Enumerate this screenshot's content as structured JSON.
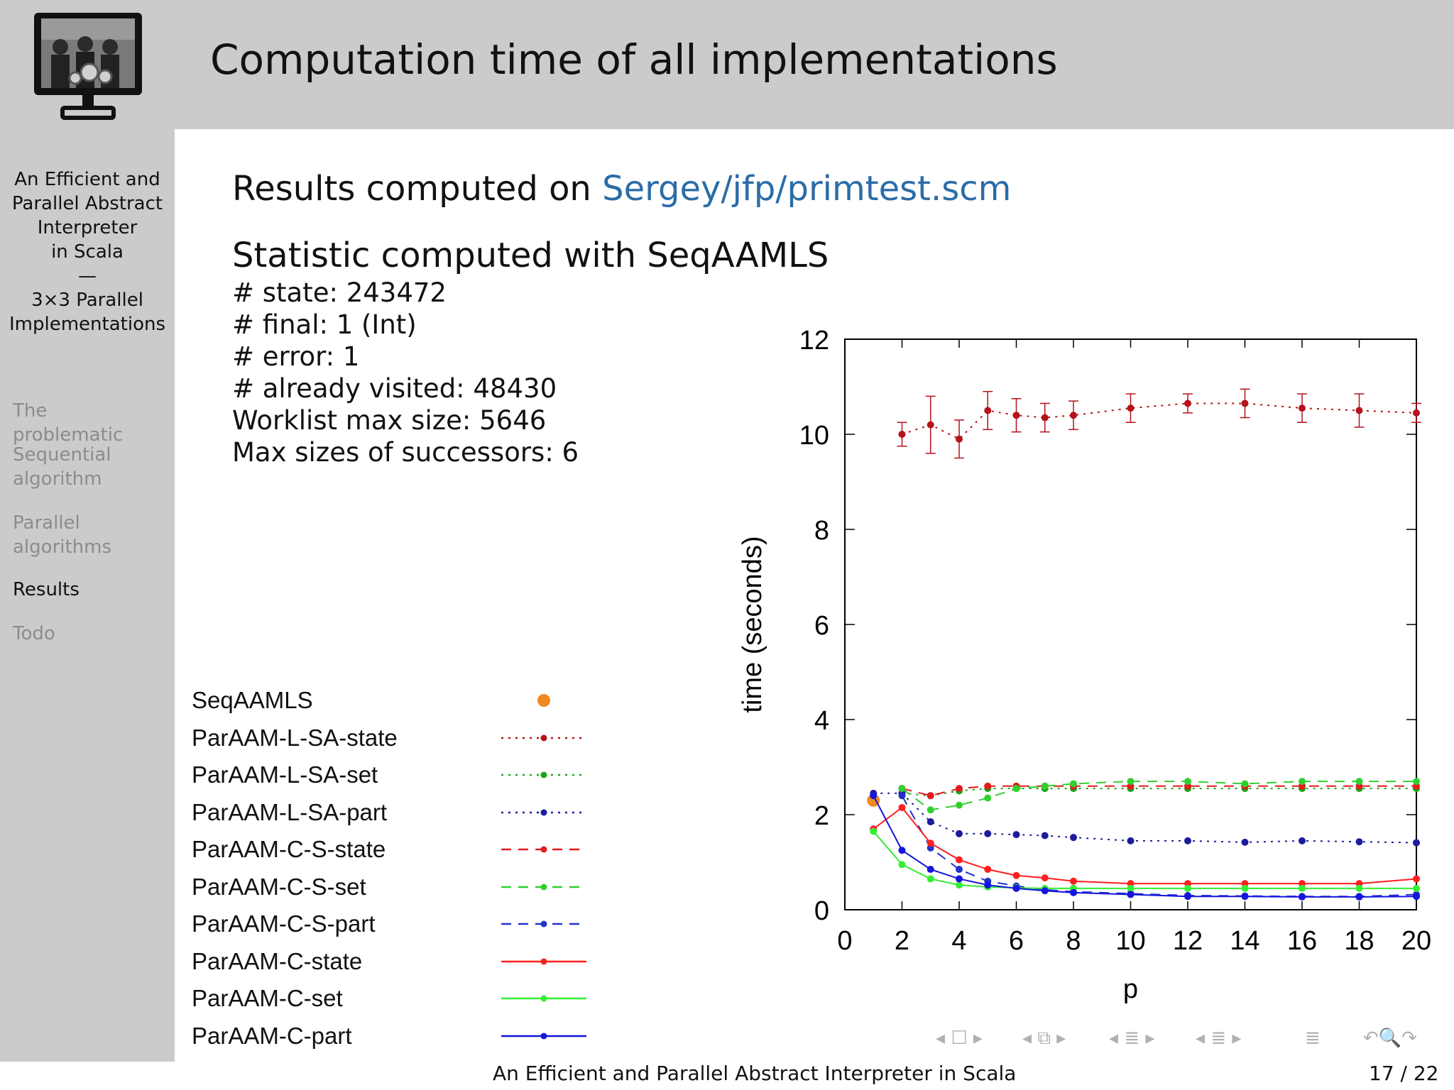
{
  "slide": {
    "title": "Computation time of all implementations",
    "logo_icon": "monitor-with-gears-photo-icon"
  },
  "sidebar": {
    "title_lines": [
      "An Efficient and",
      "Parallel Abstract",
      "Interpreter",
      "in Scala",
      "—",
      "3×3 Parallel",
      "Implementations"
    ],
    "nav": [
      {
        "label": "The problematic",
        "active": false
      },
      {
        "label": "Sequential algorithm",
        "active": false
      },
      {
        "label": "Parallel algorithms",
        "active": false
      },
      {
        "label": "Results",
        "active": true
      },
      {
        "label": "Todo",
        "active": false
      }
    ]
  },
  "content": {
    "results_prefix": "Results computed on",
    "results_link": "Sergey/jfp/primtest.scm",
    "statistic_heading": "Statistic computed with SeqAAMLS",
    "stats": [
      "# state: 243472",
      "# final: 1 (Int)",
      "# error: 1",
      "# already visited: 48430",
      "Worklist max size: 5646",
      "Max sizes of successors: 6"
    ]
  },
  "chart_data": {
    "type": "line",
    "xlabel": "p",
    "ylabel": "time (seconds)",
    "xlim": [
      0,
      20
    ],
    "ylim": [
      0,
      12
    ],
    "xticks": [
      0,
      2,
      4,
      6,
      8,
      10,
      12,
      14,
      16,
      18,
      20
    ],
    "yticks": [
      0,
      2,
      4,
      6,
      8,
      10,
      12
    ],
    "x": [
      2,
      3,
      4,
      5,
      6,
      7,
      8,
      10,
      12,
      14,
      16,
      18,
      20
    ],
    "series": [
      {
        "name": "SeqAAMLS",
        "color": "#f08a1c",
        "style": "point",
        "x": [
          1
        ],
        "values": [
          2.3
        ]
      },
      {
        "name": "ParAAM-L-SA-state",
        "color": "#b5121b",
        "style": "dotted",
        "values": [
          10.0,
          10.2,
          9.9,
          10.5,
          10.4,
          10.35,
          10.4,
          10.55,
          10.65,
          10.65,
          10.55,
          10.5,
          10.45
        ],
        "errors": [
          0.25,
          0.6,
          0.4,
          0.4,
          0.35,
          0.3,
          0.3,
          0.3,
          0.2,
          0.3,
          0.3,
          0.35,
          0.2
        ]
      },
      {
        "name": "ParAAM-L-SA-set",
        "color": "#1aa51a",
        "style": "dotted",
        "values": [
          2.45,
          2.4,
          2.5,
          2.55,
          2.55,
          2.55,
          2.55,
          2.55,
          2.55,
          2.55,
          2.55,
          2.55,
          2.55
        ]
      },
      {
        "name": "ParAAM-L-SA-part",
        "color": "#1c1c9c",
        "style": "dotted",
        "values": [
          2.45,
          1.85,
          1.6,
          1.6,
          1.58,
          1.56,
          1.52,
          1.45,
          1.45,
          1.42,
          1.45,
          1.43,
          1.41
        ]
      },
      {
        "name": "ParAAM-C-S-state",
        "color": "#e41a1c",
        "style": "dashed",
        "values": [
          2.55,
          2.4,
          2.55,
          2.6,
          2.6,
          2.6,
          2.6,
          2.6,
          2.6,
          2.6,
          2.6,
          2.6,
          2.6
        ]
      },
      {
        "name": "ParAAM-C-S-set",
        "color": "#2fd12f",
        "style": "dashed",
        "values": [
          2.55,
          2.1,
          2.2,
          2.35,
          2.55,
          2.6,
          2.65,
          2.7,
          2.7,
          2.65,
          2.7,
          2.7,
          2.7
        ]
      },
      {
        "name": "ParAAM-C-S-part",
        "color": "#2233cc",
        "style": "dashed",
        "values": [
          2.4,
          1.3,
          0.85,
          0.6,
          0.5,
          0.42,
          0.38,
          0.34,
          0.3,
          0.29,
          0.28,
          0.28,
          0.32
        ]
      },
      {
        "name": "ParAAM-C-state",
        "color": "#ff1f1f",
        "style": "solid",
        "values": [
          2.15,
          1.4,
          1.05,
          0.85,
          0.72,
          0.67,
          0.6,
          0.55,
          0.55,
          0.55,
          0.55,
          0.55,
          0.65
        ]
      },
      {
        "name": "ParAAM-C-set",
        "color": "#33ee33",
        "style": "solid",
        "values": [
          0.95,
          0.65,
          0.52,
          0.48,
          0.46,
          0.45,
          0.45,
          0.45,
          0.45,
          0.45,
          0.45,
          0.45,
          0.45
        ]
      },
      {
        "name": "ParAAM-C-part",
        "color": "#1515dd",
        "style": "solid",
        "values": [
          1.25,
          0.85,
          0.65,
          0.52,
          0.45,
          0.4,
          0.36,
          0.32,
          0.28,
          0.28,
          0.27,
          0.27,
          0.28
        ]
      }
    ],
    "p1_values": {
      "ParAAM-L-SA-part": 2.45,
      "ParAAM-C-state": 1.7,
      "ParAAM-C-set": 1.65,
      "ParAAM-C-part": 2.4
    }
  },
  "footer": {
    "title": "An Efficient and Parallel Abstract Interpreter in Scala",
    "page": "17 / 22"
  },
  "beamer_nav": [
    {
      "name": "nav-frame-icon",
      "symbol": "◂ ☐ ▸"
    },
    {
      "name": "nav-subsection-icon",
      "symbol": "◂ ⧉ ▸"
    },
    {
      "name": "nav-section-icon",
      "symbol": "◂ ≣ ▸"
    },
    {
      "name": "nav-document-icon",
      "symbol": "◂ ≣ ▸"
    },
    {
      "name": "nav-toc-icon",
      "symbol": "≣"
    },
    {
      "name": "nav-search-icon",
      "symbol": "↶🔍↷"
    }
  ]
}
